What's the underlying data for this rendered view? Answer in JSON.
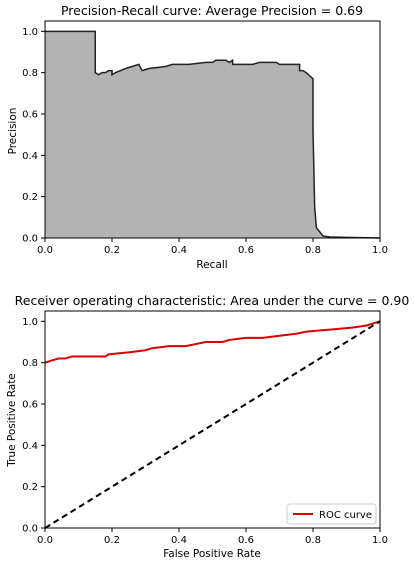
{
  "chart_data": [
    {
      "type": "area",
      "title": "Precision-Recall curve: Average Precision =     0.69",
      "xlabel": "Recall",
      "ylabel": "Precision",
      "xlim": [
        0,
        1
      ],
      "ylim": [
        0,
        1.05
      ],
      "xticks": [
        "0.0",
        "0.2",
        "0.4",
        "0.6",
        "0.8",
        "1.0"
      ],
      "yticks": [
        "0.0",
        "0.2",
        "0.4",
        "0.6",
        "0.8",
        "1.0"
      ],
      "grid": false,
      "fill_color": "#b3b3b3",
      "line_color": "#222222",
      "series": [
        {
          "points": [
            [
              0.0,
              1.0
            ],
            [
              0.15,
              1.0
            ],
            [
              0.15,
              0.8
            ],
            [
              0.16,
              0.79
            ],
            [
              0.17,
              0.8
            ],
            [
              0.18,
              0.8
            ],
            [
              0.19,
              0.81
            ],
            [
              0.2,
              0.81
            ],
            [
              0.2,
              0.79
            ],
            [
              0.21,
              0.8
            ],
            [
              0.24,
              0.82
            ],
            [
              0.28,
              0.84
            ],
            [
              0.29,
              0.81
            ],
            [
              0.31,
              0.82
            ],
            [
              0.36,
              0.83
            ],
            [
              0.38,
              0.84
            ],
            [
              0.4,
              0.84
            ],
            [
              0.41,
              0.84
            ],
            [
              0.43,
              0.84
            ],
            [
              0.48,
              0.85
            ],
            [
              0.5,
              0.85
            ],
            [
              0.51,
              0.86
            ],
            [
              0.54,
              0.86
            ],
            [
              0.55,
              0.85
            ],
            [
              0.56,
              0.86
            ],
            [
              0.56,
              0.84
            ],
            [
              0.58,
              0.84
            ],
            [
              0.62,
              0.84
            ],
            [
              0.64,
              0.85
            ],
            [
              0.69,
              0.85
            ],
            [
              0.7,
              0.84
            ],
            [
              0.74,
              0.84
            ],
            [
              0.76,
              0.84
            ],
            [
              0.76,
              0.81
            ],
            [
              0.77,
              0.81
            ],
            [
              0.78,
              0.8
            ],
            [
              0.8,
              0.77
            ],
            [
              0.8,
              0.52
            ],
            [
              0.805,
              0.15
            ],
            [
              0.81,
              0.05
            ],
            [
              0.83,
              0.01
            ],
            [
              0.85,
              0.005
            ],
            [
              0.9,
              0.003
            ],
            [
              1.0,
              0.0
            ]
          ]
        }
      ]
    },
    {
      "type": "line",
      "title": "Receiver operating characteristic:     Area under the curve = 0.90",
      "xlabel": "False Positive Rate",
      "ylabel": "True Positive Rate",
      "xlim": [
        0,
        1
      ],
      "ylim": [
        0,
        1.05
      ],
      "xticks": [
        "0.0",
        "0.2",
        "0.4",
        "0.6",
        "0.8",
        "1.0"
      ],
      "yticks": [
        "0.0",
        "0.2",
        "0.4",
        "0.6",
        "0.8",
        "1.0"
      ],
      "grid": false,
      "legend": {
        "placement": "lower right",
        "entries": [
          "ROC curve"
        ]
      },
      "series": [
        {
          "name": "ROC curve",
          "color": "#dd0000",
          "points": [
            [
              0.0,
              0.8
            ],
            [
              0.02,
              0.81
            ],
            [
              0.04,
              0.82
            ],
            [
              0.06,
              0.82
            ],
            [
              0.08,
              0.83
            ],
            [
              0.18,
              0.83
            ],
            [
              0.19,
              0.84
            ],
            [
              0.25,
              0.85
            ],
            [
              0.3,
              0.86
            ],
            [
              0.32,
              0.87
            ],
            [
              0.37,
              0.88
            ],
            [
              0.42,
              0.88
            ],
            [
              0.45,
              0.89
            ],
            [
              0.48,
              0.9
            ],
            [
              0.53,
              0.9
            ],
            [
              0.55,
              0.91
            ],
            [
              0.6,
              0.92
            ],
            [
              0.65,
              0.92
            ],
            [
              0.7,
              0.93
            ],
            [
              0.75,
              0.94
            ],
            [
              0.78,
              0.95
            ],
            [
              0.85,
              0.96
            ],
            [
              0.92,
              0.97
            ],
            [
              0.96,
              0.98
            ],
            [
              1.0,
              1.0
            ]
          ]
        },
        {
          "color": "#000000",
          "style": "dashed",
          "points": [
            [
              0.0,
              0.0
            ],
            [
              1.0,
              1.0
            ]
          ]
        }
      ]
    }
  ]
}
